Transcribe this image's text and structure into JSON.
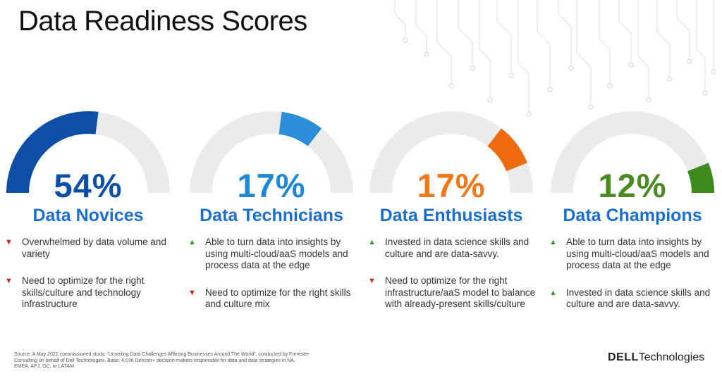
{
  "title": "Data Readiness Scores",
  "segments": [
    {
      "percent": "54%",
      "name": "Data Novices",
      "value": 0.54,
      "gauge_color": "#0d4fa6",
      "text_color": "#0d4fa6",
      "name_color": "#1a6dd1",
      "bullets": [
        {
          "icon": "down-triangle-icon",
          "text": "Overwhelmed by data volume and variety"
        },
        {
          "icon": "down-triangle-icon",
          "text": "Need to optimize for the right skills/culture and technology infrastructure"
        }
      ]
    },
    {
      "percent": "17%",
      "name": "Data Technicians",
      "value": 0.17,
      "gauge_color": "#2a8fd8",
      "text_color": "#1e88d6",
      "name_color": "#1a6dd1",
      "bullets": [
        {
          "icon": "up-triangle-icon",
          "text": "Able to turn data into insights by using multi-cloud/aaS models and process data at the edge"
        },
        {
          "icon": "down-triangle-icon",
          "text": "Need to optimize for the right skills and culture mix"
        }
      ]
    },
    {
      "percent": "17%",
      "name": "Data Enthusiasts",
      "value": 0.17,
      "gauge_color": "#ee6a0e",
      "text_color": "#f07818",
      "name_color": "#1a6dd1",
      "bullets": [
        {
          "icon": "up-triangle-icon",
          "text": "Invested in data science skills and culture and are data-savvy."
        },
        {
          "icon": "down-triangle-icon",
          "text": "Need to optimize for the right infrastructure/aaS model to balance with already-present skills/culture"
        }
      ]
    },
    {
      "percent": "12%",
      "name": "Data Champions",
      "value": 0.12,
      "gauge_color": "#3c8a1e",
      "text_color": "#4a8a22",
      "name_color": "#1a6dd1",
      "bullets": [
        {
          "icon": "up-triangle-icon",
          "text": "Able to turn data into insights by using multi-cloud/aaS models and process data at the edge"
        },
        {
          "icon": "up-triangle-icon",
          "text": "Invested in data science skills and culture and are data-savvy."
        }
      ]
    }
  ],
  "gauge_track_color": "#ebebeb",
  "footnote": "Source: A May 2021 commissioned study, \"Unveiling Data Challenges Afflicting Businesses Around The World\", conducted by Forrester Consulting on behalf of Dell Technologies. Base: 4,036 Director+ decision-makers responsible for data and data strategies in NA, EMEA, APJ, GC, or LATAM",
  "brand": {
    "bold": "DELL",
    "rest": "Technologies"
  }
}
